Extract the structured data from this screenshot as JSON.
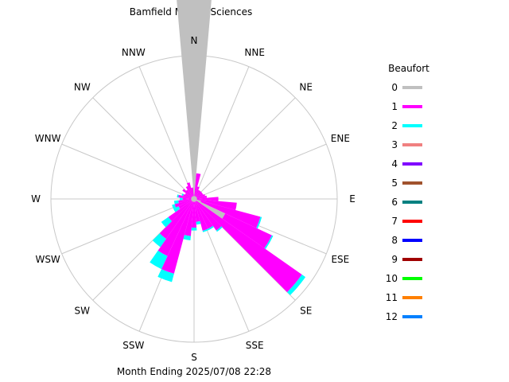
{
  "chart_data": {
    "type": "wind-rose",
    "title": "Bamfield Marine Sciences",
    "footer": "Month Ending 2025/07/08 22:28",
    "legend_title": "Beaufort",
    "directions": [
      "N",
      "NNE",
      "NE",
      "ENE",
      "E",
      "ESE",
      "SE",
      "SSE",
      "S",
      "SSW",
      "SW",
      "WSW",
      "W",
      "WNW",
      "NW",
      "NNW"
    ],
    "sector_count": 36,
    "beaufort": [
      {
        "level": "0",
        "color": "#c0c0c0"
      },
      {
        "level": "1",
        "color": "#ff00ff"
      },
      {
        "level": "2",
        "color": "#00ffff"
      },
      {
        "level": "3",
        "color": "#f08080"
      },
      {
        "level": "4",
        "color": "#8000ff"
      },
      {
        "level": "5",
        "color": "#a0522d"
      },
      {
        "level": "6",
        "color": "#008080"
      },
      {
        "level": "7",
        "color": "#ff0000"
      },
      {
        "level": "8",
        "color": "#0000ff"
      },
      {
        "level": "9",
        "color": "#a00000"
      },
      {
        "level": "10",
        "color": "#00ff00"
      },
      {
        "level": "11",
        "color": "#ff8000"
      },
      {
        "level": "12",
        "color": "#0080ff"
      }
    ],
    "rmax": 1.0,
    "calm_fraction": 0.02,
    "sectors": [
      {
        "dir": 0,
        "values": [
          1.4,
          0.0,
          0.0
        ]
      },
      {
        "dir": 10,
        "values": [
          0.0,
          0.16,
          0.0
        ]
      },
      {
        "dir": 20,
        "values": [
          0.0,
          0.07,
          0.0
        ]
      },
      {
        "dir": 30,
        "values": [
          0.0,
          0.05,
          0.0
        ]
      },
      {
        "dir": 40,
        "values": [
          0.0,
          0.05,
          0.0
        ]
      },
      {
        "dir": 50,
        "values": [
          0.0,
          0.05,
          0.0
        ]
      },
      {
        "dir": 60,
        "values": [
          0.0,
          0.05,
          0.0
        ]
      },
      {
        "dir": 70,
        "values": [
          0.0,
          0.06,
          0.0
        ]
      },
      {
        "dir": 80,
        "values": [
          0.0,
          0.07,
          0.0
        ]
      },
      {
        "dir": 90,
        "values": [
          0.0,
          0.15,
          0.0
        ]
      },
      {
        "dir": 100,
        "values": [
          0.0,
          0.28,
          0.0
        ]
      },
      {
        "dir": 110,
        "values": [
          0.03,
          0.43,
          0.01
        ]
      },
      {
        "dir": 120,
        "values": [
          0.22,
          0.36,
          0.01
        ]
      },
      {
        "dir": 130,
        "values": [
          0.0,
          0.9,
          0.03
        ]
      },
      {
        "dir": 140,
        "values": [
          0.0,
          0.25,
          0.01
        ]
      },
      {
        "dir": 150,
        "values": [
          0.0,
          0.21,
          0.01
        ]
      },
      {
        "dir": 160,
        "values": [
          0.0,
          0.21,
          0.01
        ]
      },
      {
        "dir": 170,
        "values": [
          0.0,
          0.14,
          0.02
        ]
      },
      {
        "dir": 180,
        "values": [
          0.0,
          0.18,
          0.02
        ]
      },
      {
        "dir": 190,
        "values": [
          0.0,
          0.24,
          0.03
        ]
      },
      {
        "dir": 200,
        "values": [
          0.0,
          0.52,
          0.06
        ]
      },
      {
        "dir": 210,
        "values": [
          0.0,
          0.42,
          0.1
        ]
      },
      {
        "dir": 220,
        "values": [
          0.0,
          0.32,
          0.07
        ]
      },
      {
        "dir": 230,
        "values": [
          0.0,
          0.2,
          0.06
        ]
      },
      {
        "dir": 240,
        "values": [
          0.0,
          0.1,
          0.04
        ]
      },
      {
        "dir": 250,
        "values": [
          0.0,
          0.12,
          0.02
        ]
      },
      {
        "dir": 260,
        "values": [
          0.0,
          0.09,
          0.03
        ]
      },
      {
        "dir": 270,
        "values": [
          0.0,
          0.06,
          0.02
        ]
      },
      {
        "dir": 280,
        "values": [
          0.0,
          0.09,
          0.01
        ]
      },
      {
        "dir": 290,
        "values": [
          0.0,
          0.06,
          0.01
        ]
      },
      {
        "dir": 300,
        "values": [
          0.0,
          0.05,
          0.0
        ]
      },
      {
        "dir": 310,
        "values": [
          0.0,
          0.08,
          0.0
        ]
      },
      {
        "dir": 320,
        "values": [
          0.0,
          0.06,
          0.0
        ]
      },
      {
        "dir": 330,
        "values": [
          0.0,
          0.08,
          0.0
        ]
      },
      {
        "dir": 340,
        "values": [
          0.0,
          0.1,
          0.0
        ]
      },
      {
        "dir": 350,
        "values": [
          0.0,
          0.06,
          0.0
        ]
      }
    ]
  }
}
